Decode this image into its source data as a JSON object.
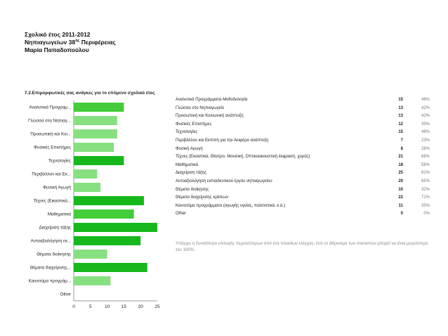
{
  "header": {
    "line1": "Σχολικό έτος 2011-2012",
    "line2_prefix": "Νηπιαγωγείων 38",
    "line2_sup": "ης",
    "line2_suffix": " Περιφέρειας",
    "line3": "Μαρία Παπαδοπούλου"
  },
  "chart_data": {
    "type": "bar",
    "orientation": "horizontal",
    "title": "7.2.Επιμορφωτικές σας ανάγκες για το επόμενο σχολικό έτος",
    "categories": [
      "Αναλυτικά Προγραμ...",
      "Γλώσσα στο Νηπιαγ...",
      "Προσωπική και Κοι...",
      "Φυσικές Επιστήμες",
      "Τεχνολογίες",
      "Περιβάλλον και Εκ...",
      "Φυσική Αγωγή",
      "Τέχνες (Εικαστικά...",
      "Μαθηματικά",
      "Διαχείριση τάξης",
      "Αυτοαξιολόγηση εκ...",
      "Θέματα διοίκησης",
      "Θέματα διαχείρισης...",
      "Καινοτόμα προγράμ...",
      "Other"
    ],
    "values": [
      15,
      13,
      13,
      12,
      15,
      7,
      8,
      21,
      18,
      25,
      20,
      10,
      22,
      11,
      0
    ],
    "xlim": [
      0,
      25
    ],
    "xticks": [
      "0",
      "5",
      "10",
      "15",
      "20",
      "25"
    ],
    "grid": false,
    "colors": {
      "light": "#86e07f",
      "mid": "#44cc3a",
      "strong": "#17b81c",
      "axis": "#999999"
    }
  },
  "table": {
    "rows": [
      {
        "label": "Αναλυτικά Προγράμματα-Μεθοδολογία",
        "count": "15",
        "percent": "48%"
      },
      {
        "label": "Γλώσσα στο Νηπιαγωγείο",
        "count": "13",
        "percent": "42%"
      },
      {
        "label": "Προσωπική και Κοινωνική ανάπτυξη",
        "count": "13",
        "percent": "42%"
      },
      {
        "label": "Φυσικές Επιστήμες",
        "count": "12",
        "percent": "39%"
      },
      {
        "label": "Τεχνολογίες",
        "count": "15",
        "percent": "48%"
      },
      {
        "label": "Περιβάλλον και Εκπ/ση για την Αειφόρο ανάπτυξη",
        "count": "7",
        "percent": "23%"
      },
      {
        "label": "Φυσική Αγωγή",
        "count": "8",
        "percent": "26%"
      },
      {
        "label": "Τέχνες (Εικαστικά, Θέατρο, Μουσική, Οπτικοακουστική έκφραση, χορός)",
        "count": "21",
        "percent": "68%"
      },
      {
        "label": "Μαθηματικά",
        "count": "18",
        "percent": "58%"
      },
      {
        "label": "Διαχείριση τάξης",
        "count": "25",
        "percent": "81%"
      },
      {
        "label": "Αυτοαξιολόγηση εκπαιδευτικού έργου νηπιαγωγείου",
        "count": "20",
        "percent": "65%"
      },
      {
        "label": "Θέματα διοίκησης",
        "count": "10",
        "percent": "32%"
      },
      {
        "label": "Θέματα διαχείρισης κρίσεων",
        "count": "22",
        "percent": "71%"
      },
      {
        "label": "Καινοτόμα προγράμματα (αγωγής υγείας, πολιτιστικά, κ.ά.)",
        "count": "11",
        "percent": "35%"
      },
      {
        "label": "Other",
        "count": "0",
        "percent": "0%"
      }
    ],
    "footnote": "Υπάρχει η δυνατότητα επιλογής περισσότερων από ένα πλαισίων ελέγχου, έτσι το άθροισμα των ποσοστών μπορεί να είναι μεγαλύτερο του 100%."
  }
}
